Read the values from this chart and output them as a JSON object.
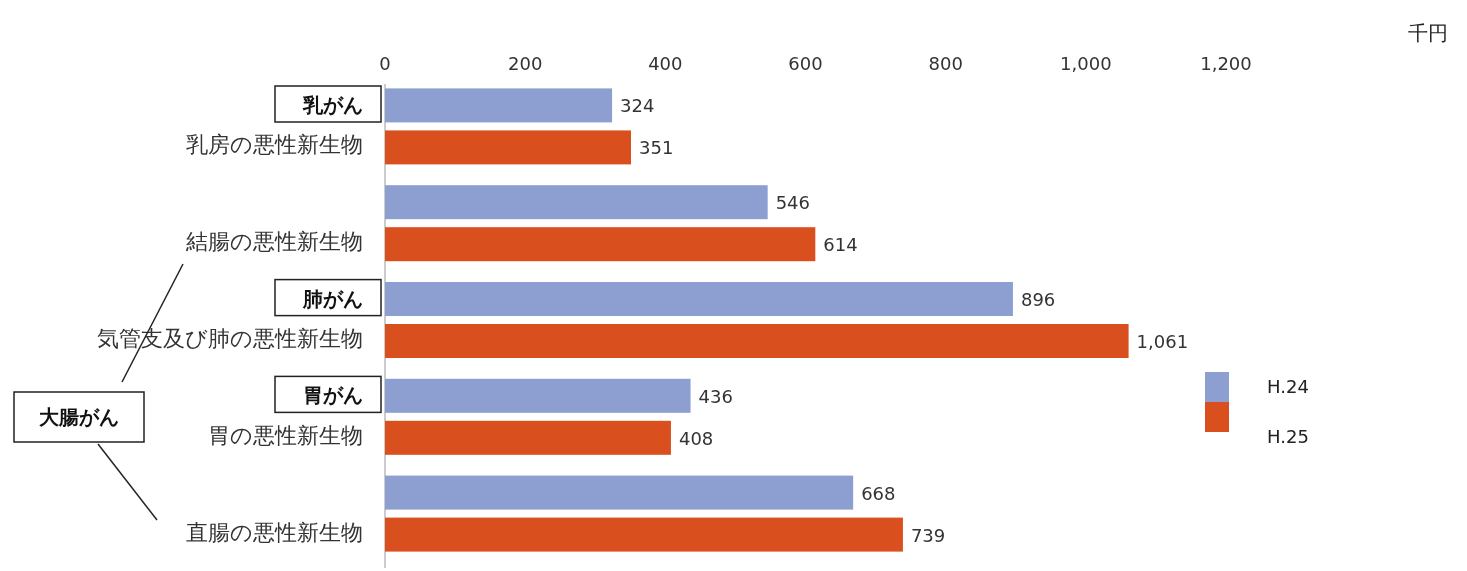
{
  "chart_data": {
    "type": "bar",
    "orientation": "horizontal",
    "categories": [
      "乳房の悪性新生物",
      "結腸の悪性新生物",
      "気管支及び肺の悪性新生物",
      "胃の悪性新生物",
      "直腸の悪性新生物"
    ],
    "series": [
      {
        "name": "H.24",
        "color": "#8c9fd0",
        "values": [
          324,
          546,
          896,
          436,
          668
        ]
      },
      {
        "name": "H.25",
        "color": "#d9501e",
        "values": [
          351,
          614,
          1061,
          408,
          739
        ],
        "value_labels": [
          "351",
          "614",
          "1,061",
          "408",
          "739"
        ]
      }
    ],
    "xlim": [
      0,
      1200
    ],
    "xticks": [
      0,
      200,
      400,
      600,
      800,
      {
        "value": 1000,
        "label": "1,000"
      },
      {
        "value": 1200,
        "label": "1,200"
      }
    ],
    "data_labels": true,
    "legend": "right",
    "grid": false,
    "annotations": [
      "千円",
      "乳がん",
      "肺がん",
      "胃がん",
      "大腸がん"
    ]
  }
}
